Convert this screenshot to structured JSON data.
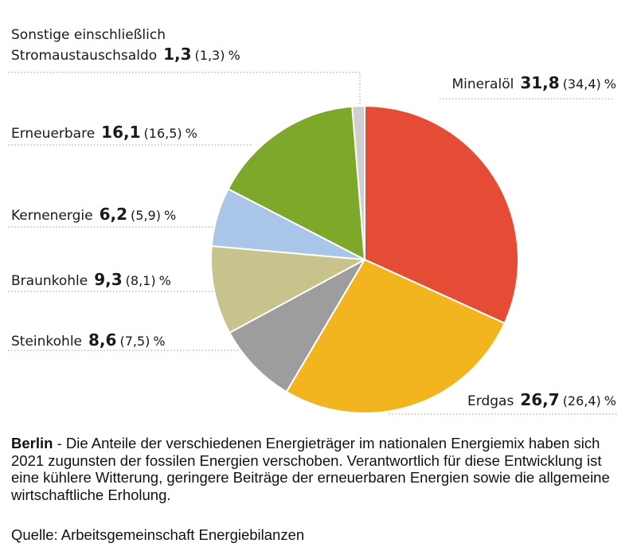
{
  "chart_data": {
    "type": "pie",
    "unit": "%",
    "slices": [
      {
        "label": "Mineralöl",
        "value": 31.8,
        "value_text": "31,8",
        "previous_text": "(34,4)",
        "color": "#e44c35"
      },
      {
        "label": "Erdgas",
        "value": 26.7,
        "value_text": "26,7",
        "previous_text": "(26,4)",
        "color": "#f2b41f"
      },
      {
        "label": "Steinkohle",
        "value": 8.6,
        "value_text": "8,6",
        "previous_text": "(7,5)",
        "color": "#9d9d9d"
      },
      {
        "label": "Braunkohle",
        "value": 9.3,
        "value_text": "9,3",
        "previous_text": "(8,1)",
        "color": "#c8c28c"
      },
      {
        "label": "Kernenergie",
        "value": 6.2,
        "value_text": "6,2",
        "previous_text": "(5,9)",
        "color": "#a9c5e8"
      },
      {
        "label": "Erneuerbare",
        "value": 16.1,
        "value_text": "16,1",
        "previous_text": "(16,5)",
        "color": "#7ea82a"
      },
      {
        "label_line1": "Sonstige einschließlich",
        "label_line2": "Stromaustauschsaldo",
        "value": 1.3,
        "value_text": "1,3",
        "previous_text": "(1,3)",
        "color": "#cfcfcf"
      }
    ]
  },
  "caption": {
    "lead": "Berlin",
    "text": " - Die Anteile der verschiedenen Energieträger im nationalen Energiemix haben sich 2021 zugunsten der fossilen Energien verschoben. Verantwortlich für diese Entwicklung ist eine kühlere Witterung, geringere Beiträge der erneuerbaren Energien sowie die allgemeine wirtschaftliche Erholung."
  },
  "source": "Quelle: Arbeitsgemeinschaft Energiebilanzen"
}
